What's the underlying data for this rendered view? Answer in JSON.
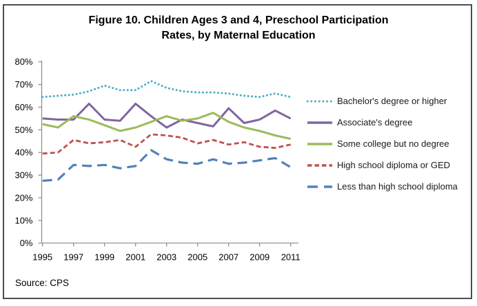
{
  "figure": {
    "title_line1": "Figure 10. Children Ages 3 and 4, Preschool Participation",
    "title_line2": "Rates, by Maternal Education",
    "source": "Source: CPS"
  },
  "chart_data": {
    "type": "line",
    "title": "Figure 10. Children Ages 3 and 4, Preschool Participation Rates, by Maternal Education",
    "xlabel": "",
    "ylabel": "",
    "x": [
      1995,
      1996,
      1997,
      1998,
      1999,
      2000,
      2001,
      2002,
      2003,
      2004,
      2005,
      2006,
      2007,
      2008,
      2009,
      2010,
      2011
    ],
    "x_tick_labels": [
      "1995",
      "1997",
      "1999",
      "2001",
      "2003",
      "2005",
      "2007",
      "2009",
      "2011"
    ],
    "ylim": [
      0,
      80
    ],
    "ytick_step": 10,
    "ytick_labels": [
      "0%",
      "10%",
      "20%",
      "30%",
      "40%",
      "50%",
      "60%",
      "70%",
      "80%"
    ],
    "grid": "off",
    "legend_position": "right",
    "axis_color": "#8a8a8a",
    "series": [
      {
        "name": "Bachelor's degree or higher",
        "color": "#4BACC6",
        "line_style": "round-dot",
        "values": [
          64.5,
          65,
          65.5,
          67,
          69.5,
          67.5,
          67.5,
          71.5,
          68.5,
          67,
          66.5,
          66.5,
          66,
          65,
          64.5,
          66,
          64.5
        ]
      },
      {
        "name": "Associate's degree",
        "color": "#8064A2",
        "line_style": "solid",
        "values": [
          55,
          54.5,
          54.5,
          61.5,
          54.5,
          54,
          61.5,
          56,
          51,
          54.5,
          53,
          51.5,
          59.5,
          53,
          54.5,
          58.5,
          55
        ]
      },
      {
        "name": "Some college but no degree",
        "color": "#9BBB59",
        "line_style": "solid",
        "values": [
          52.5,
          51,
          56,
          54.5,
          52,
          49.5,
          51,
          53.5,
          56,
          54,
          55,
          57.5,
          53.5,
          51,
          49.5,
          47.5,
          46
        ]
      },
      {
        "name": "High school diploma or GED",
        "color": "#C0504D",
        "line_style": "dash",
        "values": [
          39.5,
          40,
          45.5,
          44,
          44.5,
          45.5,
          42.5,
          48,
          47.5,
          46.5,
          44,
          45.5,
          43.5,
          44.5,
          42.5,
          42,
          43.5
        ]
      },
      {
        "name": "Less than high school diploma",
        "color": "#4F81BD",
        "line_style": "long-dash",
        "values": [
          27.5,
          28,
          34.5,
          34,
          34.5,
          33,
          34,
          41,
          37,
          35.5,
          35,
          37,
          35,
          35.5,
          36.5,
          37.5,
          33.5
        ]
      }
    ]
  }
}
